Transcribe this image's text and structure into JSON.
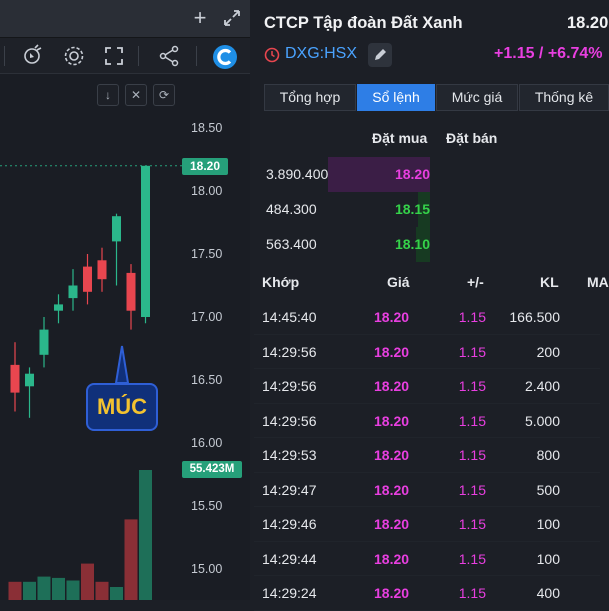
{
  "chart": {
    "add_label": "+",
    "axis_ticks": [
      "18.50",
      "18.00",
      "17.50",
      "17.00",
      "16.50",
      "16.00",
      "15.50",
      "15.00"
    ],
    "last_price_tag": "18.20",
    "volume_tag": "55.423M",
    "callout_text": "MÚC",
    "candles": [
      {
        "o": 16.62,
        "c": 16.4,
        "h": 16.8,
        "l": 16.25
      },
      {
        "o": 16.45,
        "c": 16.55,
        "h": 16.6,
        "l": 16.2
      },
      {
        "o": 16.7,
        "c": 16.9,
        "h": 17.0,
        "l": 16.6
      },
      {
        "o": 17.05,
        "c": 17.1,
        "h": 17.18,
        "l": 16.95
      },
      {
        "o": 17.15,
        "c": 17.25,
        "h": 17.38,
        "l": 17.05
      },
      {
        "o": 17.4,
        "c": 17.2,
        "h": 17.5,
        "l": 17.1
      },
      {
        "o": 17.45,
        "c": 17.3,
        "h": 17.55,
        "l": 17.2
      },
      {
        "o": 17.6,
        "c": 17.8,
        "h": 17.82,
        "l": 17.25
      },
      {
        "o": 17.35,
        "c": 17.05,
        "h": 17.42,
        "l": 16.9
      },
      {
        "o": 17.0,
        "c": 18.2,
        "h": 18.2,
        "l": 16.95
      }
    ],
    "volumes": [
      14,
      14,
      18,
      17,
      15,
      28,
      14,
      10,
      62,
      100
    ],
    "colors": {
      "up": "#2bb78b",
      "down": "#e8464f",
      "bg": "#1a1d24",
      "grid_line": "#26a07a"
    }
  },
  "quote": {
    "company": "CTCP Tập đoàn Đất Xanh",
    "price": "18.20",
    "ticker": "DXG:HSX",
    "change": "+1.15 / +6.74%"
  },
  "tabs": [
    {
      "label": "Tổng hợp",
      "active": false
    },
    {
      "label": "Sổ lệnh",
      "active": true
    },
    {
      "label": "Mức giá",
      "active": false
    },
    {
      "label": "Thống kê",
      "active": false
    }
  ],
  "orderbook": {
    "bid_header": "Đặt mua",
    "ask_header": "Đặt bán",
    "rows": [
      {
        "volume": "3.890.400",
        "price": "18.20",
        "color": "#e83fe0",
        "fill": 1.0
      },
      {
        "volume": "484.300",
        "price": "18.15",
        "color": "#35d24a",
        "fill": 0.12
      },
      {
        "volume": "563.400",
        "price": "18.10",
        "color": "#35d24a",
        "fill": 0.14
      }
    ]
  },
  "trades": {
    "headers": {
      "time": "Khớp",
      "price": "Giá",
      "change": "+/-",
      "volume": "KL",
      "extra": "MA"
    },
    "rows": [
      {
        "time": "14:45:40",
        "price": "18.20",
        "change": "1.15",
        "volume": "166.500"
      },
      {
        "time": "14:29:56",
        "price": "18.20",
        "change": "1.15",
        "volume": "200"
      },
      {
        "time": "14:29:56",
        "price": "18.20",
        "change": "1.15",
        "volume": "2.400"
      },
      {
        "time": "14:29:56",
        "price": "18.20",
        "change": "1.15",
        "volume": "5.000"
      },
      {
        "time": "14:29:53",
        "price": "18.20",
        "change": "1.15",
        "volume": "800"
      },
      {
        "time": "14:29:47",
        "price": "18.20",
        "change": "1.15",
        "volume": "500"
      },
      {
        "time": "14:29:46",
        "price": "18.20",
        "change": "1.15",
        "volume": "100"
      },
      {
        "time": "14:29:44",
        "price": "18.20",
        "change": "1.15",
        "volume": "100"
      },
      {
        "time": "14:29:24",
        "price": "18.20",
        "change": "1.15",
        "volume": "400"
      }
    ]
  }
}
